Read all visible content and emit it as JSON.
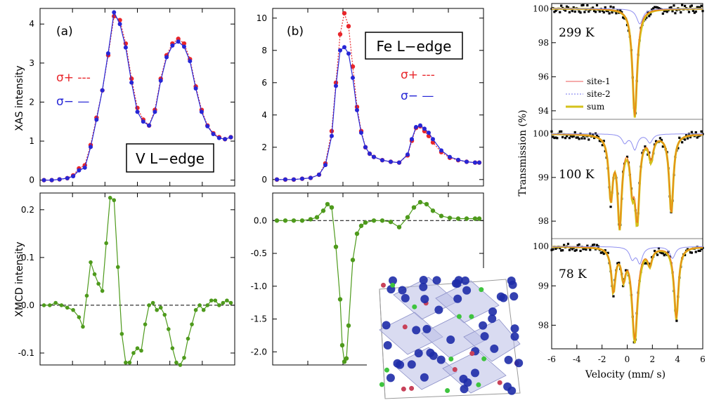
{
  "colors": {
    "sigma_plus": "#e8262b",
    "sigma_minus": "#2626d6",
    "xmcd": "#4e9a1c",
    "site1": "#f07a7a",
    "site2": "#8f8ff0",
    "sum": "#d4c21b",
    "fit": "#f07a1a",
    "data_black": "#000000"
  },
  "icons": [
    "crystal-structure-icon"
  ],
  "chart_data": [
    {
      "id": "v_xas",
      "type": "line",
      "panel_label": "(a)",
      "annotation": "V L−edge",
      "ylabel": "XAS intensity",
      "xlabel": "",
      "ylim": [
        -0.15,
        4.4
      ],
      "yticks": [
        0,
        1,
        2,
        3,
        4
      ],
      "ytick_labels": [
        "0",
        "1",
        "2",
        "3",
        "4"
      ],
      "xlim": [
        0,
        100
      ],
      "legend": [
        "σ+ ---",
        "σ− —"
      ],
      "x": [
        2,
        6,
        10,
        14,
        17,
        20,
        23,
        26,
        29,
        32,
        35,
        38,
        41,
        44,
        47,
        50,
        53,
        56,
        59,
        62,
        65,
        68,
        71,
        74,
        77,
        80,
        83,
        86,
        89,
        92,
        95,
        98
      ],
      "series": [
        {
          "name": "σ+",
          "values": [
            0,
            0,
            0.02,
            0.05,
            0.12,
            0.3,
            0.38,
            0.9,
            1.6,
            2.3,
            3.2,
            4.2,
            4.1,
            3.5,
            2.6,
            1.85,
            1.55,
            1.4,
            1.8,
            2.6,
            3.2,
            3.5,
            3.62,
            3.5,
            3.1,
            2.4,
            1.8,
            1.4,
            1.2,
            1.1,
            1.05,
            1.1
          ]
        },
        {
          "name": "σ−",
          "values": [
            0,
            0,
            0.02,
            0.05,
            0.1,
            0.25,
            0.32,
            0.85,
            1.55,
            2.3,
            3.25,
            4.3,
            4.0,
            3.4,
            2.5,
            1.75,
            1.5,
            1.4,
            1.75,
            2.55,
            3.15,
            3.45,
            3.55,
            3.42,
            3.05,
            2.35,
            1.75,
            1.38,
            1.18,
            1.08,
            1.05,
            1.1
          ]
        }
      ]
    },
    {
      "id": "v_xmcd",
      "type": "line",
      "ylabel": "XMCD intensity",
      "xlabel": "",
      "ylim": [
        -0.125,
        0.235
      ],
      "yticks": [
        -0.1,
        0,
        0.1,
        0.2
      ],
      "ytick_labels": [
        "-0.1",
        "0.0",
        "0.1",
        "0.2"
      ],
      "xlim": [
        0,
        100
      ],
      "x": [
        2,
        5,
        8,
        11,
        14,
        17,
        20,
        22,
        24,
        26,
        28,
        30,
        32,
        34,
        36,
        38,
        40,
        42,
        44,
        46,
        48,
        50,
        52,
        54,
        56,
        58,
        60,
        62,
        64,
        66,
        68,
        70,
        72,
        74,
        76,
        78,
        80,
        82,
        84,
        86,
        88,
        90,
        92,
        94,
        96,
        98
      ],
      "series": [
        {
          "name": "XMCD",
          "values": [
            0.0,
            0.0,
            0.005,
            0.0,
            -0.005,
            -0.01,
            -0.025,
            -0.045,
            0.02,
            0.09,
            0.065,
            0.045,
            0.03,
            0.13,
            0.225,
            0.22,
            0.08,
            -0.06,
            -0.12,
            -0.12,
            -0.1,
            -0.09,
            -0.095,
            -0.04,
            0.0,
            0.005,
            -0.01,
            -0.005,
            -0.02,
            -0.05,
            -0.09,
            -0.12,
            -0.125,
            -0.11,
            -0.07,
            -0.04,
            -0.01,
            0.0,
            -0.01,
            0.0,
            0.01,
            0.01,
            0.0,
            0.005,
            0.01,
            0.005
          ]
        }
      ]
    },
    {
      "id": "fe_xas",
      "type": "line",
      "panel_label": "(b)",
      "annotation": "Fe L−edge",
      "ylabel": "",
      "xlabel": "",
      "ylim": [
        -0.4,
        10.6
      ],
      "yticks": [
        0,
        2,
        4,
        6,
        8,
        10
      ],
      "ytick_labels": [
        "0",
        "2",
        "4",
        "6",
        "8",
        "10"
      ],
      "xlim": [
        0,
        100
      ],
      "legend": [
        "σ+ ---",
        "σ− —"
      ],
      "x": [
        2,
        6,
        10,
        14,
        18,
        22,
        25,
        28,
        30,
        32,
        34,
        36,
        38,
        40,
        42,
        44,
        46,
        48,
        52,
        56,
        60,
        64,
        66,
        68,
        70,
        72,
        74,
        76,
        80,
        84,
        88,
        92,
        96,
        98
      ],
      "series": [
        {
          "name": "σ+",
          "values": [
            0,
            0,
            0,
            0.05,
            0.1,
            0.3,
            1.0,
            3.0,
            6.0,
            9.0,
            10.3,
            9.5,
            7.0,
            4.5,
            3.0,
            2.0,
            1.6,
            1.4,
            1.2,
            1.1,
            1.05,
            1.5,
            2.4,
            3.2,
            3.3,
            3.0,
            2.7,
            2.3,
            1.7,
            1.35,
            1.2,
            1.1,
            1.05,
            1.05
          ]
        },
        {
          "name": "σ−",
          "values": [
            0,
            0,
            0,
            0.05,
            0.1,
            0.3,
            0.9,
            2.7,
            5.8,
            8.0,
            8.2,
            7.8,
            6.3,
            4.3,
            2.9,
            2.0,
            1.6,
            1.4,
            1.2,
            1.1,
            1.05,
            1.55,
            2.5,
            3.25,
            3.35,
            3.15,
            2.9,
            2.5,
            1.8,
            1.4,
            1.22,
            1.1,
            1.05,
            1.05
          ]
        }
      ]
    },
    {
      "id": "fe_xmcd",
      "type": "line",
      "ylabel": "",
      "xlabel": "",
      "ylim": [
        -2.2,
        0.42
      ],
      "yticks": [
        -2.0,
        -1.5,
        -1.0,
        -0.5,
        0.0
      ],
      "ytick_labels": [
        "-2.0",
        "-1.5",
        "-1.0",
        "-0.5",
        "0.0"
      ],
      "xlim": [
        0,
        100
      ],
      "x": [
        2,
        6,
        10,
        14,
        18,
        21,
        24,
        26,
        28,
        30,
        32,
        33,
        34,
        35,
        36,
        38,
        40,
        42,
        44,
        48,
        52,
        56,
        60,
        64,
        67,
        70,
        73,
        76,
        80,
        84,
        88,
        92,
        96,
        98
      ],
      "series": [
        {
          "name": "XMCD",
          "values": [
            0,
            0,
            0,
            0,
            0.02,
            0.05,
            0.15,
            0.25,
            0.2,
            -0.4,
            -1.2,
            -1.9,
            -2.15,
            -2.1,
            -1.6,
            -0.6,
            -0.2,
            -0.08,
            -0.03,
            0.0,
            0.0,
            -0.02,
            -0.1,
            0.05,
            0.2,
            0.28,
            0.25,
            0.15,
            0.07,
            0.04,
            0.03,
            0.03,
            0.03,
            0.03
          ]
        }
      ]
    },
    {
      "id": "mossbauer",
      "type": "scatter",
      "xlabel": "Velocity (mm/ s)",
      "ylabel": "Transmission (%)",
      "xlim": [
        -6,
        6
      ],
      "xticks": [
        -6,
        -4,
        -2,
        0,
        2,
        4,
        6
      ],
      "xtick_labels": [
        "-6",
        "-4",
        "-2",
        "0",
        "2",
        "4",
        "6"
      ],
      "legend": [
        "site-1",
        "site-2",
        "sum"
      ],
      "subpanels": [
        {
          "label": "299 K",
          "ylim": [
            93.5,
            100.3
          ],
          "yticks": [
            94,
            96,
            98,
            100
          ],
          "ytick_labels": [
            "94",
            "96",
            "98",
            "100"
          ],
          "fit_lines": [
            {
              "center": 0.6,
              "depth": 6.3,
              "width": 0.22
            }
          ],
          "site2_lines": [
            {
              "center": 1.0,
              "depth": 0.9,
              "width": 0.3
            }
          ]
        },
        {
          "label": "100 K",
          "ylim": [
            97.6,
            100.25
          ],
          "yticks": [
            98,
            99,
            100
          ],
          "ytick_labels": [
            "98",
            "99",
            "100"
          ],
          "fit_lines": [
            {
              "center": -1.3,
              "depth": 1.4,
              "width": 0.2
            },
            {
              "center": -0.6,
              "depth": 2.0,
              "width": 0.2
            },
            {
              "center": 0.4,
              "depth": 1.0,
              "width": 0.2
            },
            {
              "center": 0.8,
              "depth": 1.8,
              "width": 0.2
            },
            {
              "center": 1.9,
              "depth": 0.5,
              "width": 0.2
            },
            {
              "center": 3.5,
              "depth": 1.8,
              "width": 0.2
            }
          ],
          "site2_lines": [
            {
              "center": -0.2,
              "depth": 0.2,
              "width": 0.25
            },
            {
              "center": 0.6,
              "depth": 0.35,
              "width": 0.25
            },
            {
              "center": 1.8,
              "depth": 0.2,
              "width": 0.25
            }
          ]
        },
        {
          "label": "78 K",
          "ylim": [
            97.4,
            100.2
          ],
          "yticks": [
            98,
            99,
            100
          ],
          "ytick_labels": [
            "98",
            "99",
            "100"
          ],
          "fit_lines": [
            {
              "center": -1.1,
              "depth": 1.1,
              "width": 0.2
            },
            {
              "center": -0.3,
              "depth": 0.7,
              "width": 0.2
            },
            {
              "center": 0.6,
              "depth": 2.3,
              "width": 0.25
            },
            {
              "center": 1.8,
              "depth": 0.4,
              "width": 0.2
            },
            {
              "center": 3.9,
              "depth": 1.8,
              "width": 0.2
            }
          ],
          "site2_lines": [
            {
              "center": 0.4,
              "depth": 0.3,
              "width": 0.25
            },
            {
              "center": 1.0,
              "depth": 0.4,
              "width": 0.25
            },
            {
              "center": 3.6,
              "depth": 0.3,
              "width": 0.25
            }
          ]
        }
      ]
    }
  ]
}
